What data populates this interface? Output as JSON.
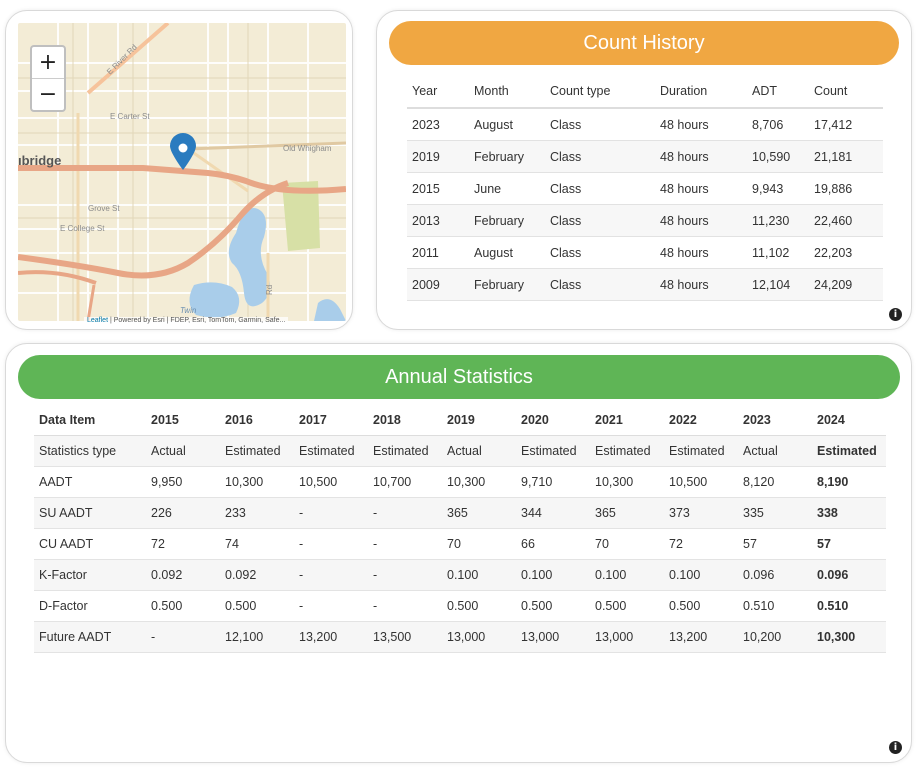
{
  "map": {
    "zoom_in": "+",
    "zoom_out": "−",
    "place_label": "ıbridge",
    "street_labels": [
      "E River Rd",
      "E Carter St",
      "Old Whigham",
      "Grove St",
      "E College St",
      "Twin",
      "Rd"
    ],
    "attribution_leaflet": "Leaflet",
    "attribution_text": " | Powered by Esri | FDEP, Esri, TomTom, Garmin, Safe...",
    "attribution_powered_by": "Esri",
    "colors": {
      "land": "#f3ecd6",
      "major_road": "#e8a686",
      "water": "#a9cdea",
      "park": "#d7e0a6",
      "marker": "#2a7bbf"
    }
  },
  "count_history": {
    "title": "Count History",
    "color": "#f0a742",
    "columns": [
      "Year",
      "Month",
      "Count type",
      "Duration",
      "ADT",
      "Count"
    ],
    "rows": [
      [
        "2023",
        "August",
        "Class",
        "48 hours",
        "8,706",
        "17,412"
      ],
      [
        "2019",
        "February",
        "Class",
        "48 hours",
        "10,590",
        "21,181"
      ],
      [
        "2015",
        "June",
        "Class",
        "48 hours",
        "9,943",
        "19,886"
      ],
      [
        "2013",
        "February",
        "Class",
        "48 hours",
        "11,230",
        "22,460"
      ],
      [
        "2011",
        "August",
        "Class",
        "48 hours",
        "11,102",
        "22,203"
      ],
      [
        "2009",
        "February",
        "Class",
        "48 hours",
        "12,104",
        "24,209"
      ]
    ]
  },
  "annual_statistics": {
    "title": "Annual Statistics",
    "color": "#5fb556",
    "columns": [
      "Data Item",
      "2015",
      "2016",
      "2017",
      "2018",
      "2019",
      "2020",
      "2021",
      "2022",
      "2023",
      "2024"
    ],
    "rows": [
      [
        "Statistics type",
        "Actual",
        "Estimated",
        "Estimated",
        "Estimated",
        "Actual",
        "Estimated",
        "Estimated",
        "Estimated",
        "Actual",
        "Estimated"
      ],
      [
        "AADT",
        "9,950",
        "10,300",
        "10,500",
        "10,700",
        "10,300",
        "9,710",
        "10,300",
        "10,500",
        "8,120",
        "8,190"
      ],
      [
        "SU AADT",
        "226",
        "233",
        "-",
        "-",
        "365",
        "344",
        "365",
        "373",
        "335",
        "338"
      ],
      [
        "CU AADT",
        "72",
        "74",
        "-",
        "-",
        "70",
        "66",
        "70",
        "72",
        "57",
        "57"
      ],
      [
        "K-Factor",
        "0.092",
        "0.092",
        "-",
        "-",
        "0.100",
        "0.100",
        "0.100",
        "0.100",
        "0.096",
        "0.096"
      ],
      [
        "D-Factor",
        "0.500",
        "0.500",
        "-",
        "-",
        "0.500",
        "0.500",
        "0.500",
        "0.500",
        "0.510",
        "0.510"
      ],
      [
        "Future AADT",
        "-",
        "12,100",
        "13,200",
        "13,500",
        "13,000",
        "13,000",
        "13,000",
        "13,200",
        "10,200",
        "10,300"
      ]
    ]
  },
  "info_icon": "i"
}
